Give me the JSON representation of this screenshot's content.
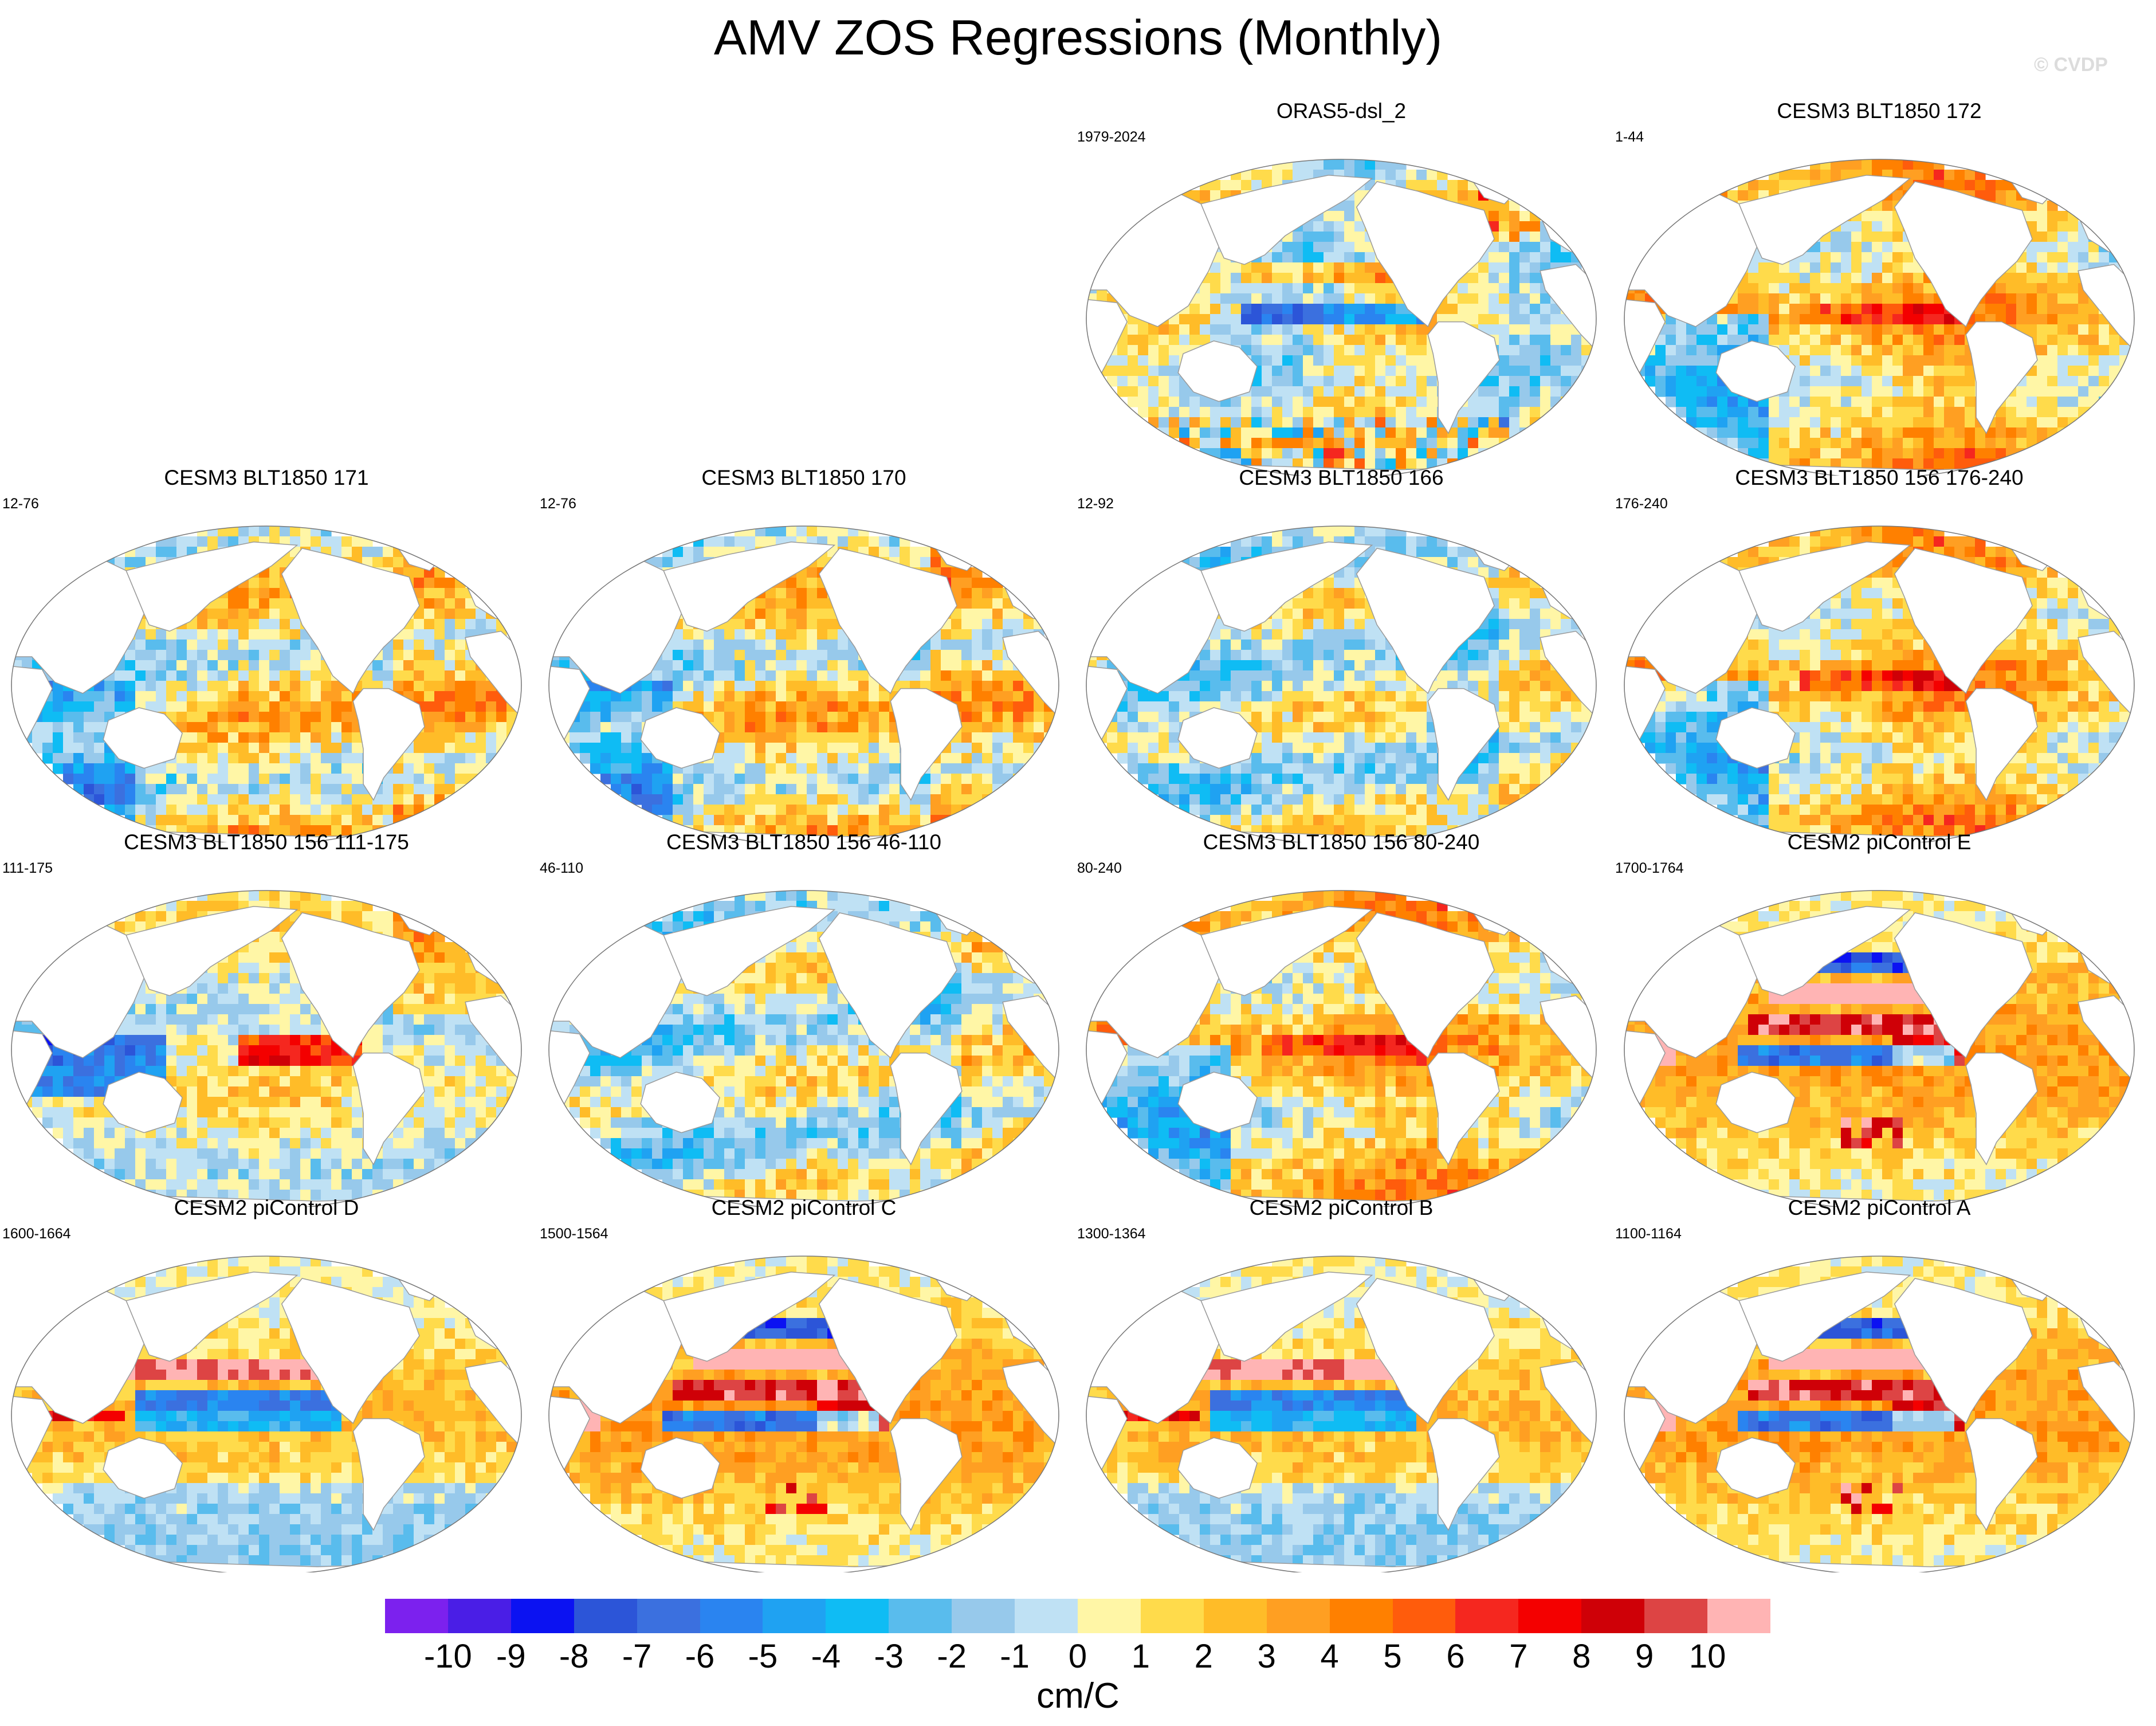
{
  "title": "AMV ZOS Regressions (Monthly)",
  "watermark": "© CVDP",
  "chart_data": {
    "type": "heatmap",
    "title": "AMV ZOS Regressions (Monthly)",
    "variable": "ZOS",
    "projection": "global map",
    "panels": [
      {
        "name": "ORAS5-dsl_2",
        "years": "1979-2024",
        "pattern": "obs"
      },
      {
        "name": "CESM3 BLT1850 172",
        "years": "1-44",
        "pattern": "cesm3_warm"
      },
      {
        "name": "CESM3 BLT1850 171",
        "years": "12-76",
        "pattern": "cesm3_mixed"
      },
      {
        "name": "CESM3 BLT1850 170",
        "years": "12-76",
        "pattern": "cesm3_mixed"
      },
      {
        "name": "CESM3 BLT1850 166",
        "years": "12-92",
        "pattern": "cesm3_cool"
      },
      {
        "name": "CESM3 BLT1850 156 176-240",
        "years": "176-240",
        "pattern": "cesm3_warm"
      },
      {
        "name": "CESM3 BLT1850 156 111-175",
        "years": "111-175",
        "pattern": "cesm3_eq"
      },
      {
        "name": "CESM3 BLT1850 156 46-110",
        "years": "46-110",
        "pattern": "cesm3_cool"
      },
      {
        "name": "CESM3 BLT1850 156 80-240",
        "years": "80-240",
        "pattern": "cesm3_warm"
      },
      {
        "name": "CESM2 piControl E",
        "years": "1700-1764",
        "pattern": "cesm2_strong"
      },
      {
        "name": "CESM2 piControl D",
        "years": "1600-1664",
        "pattern": "cesm2"
      },
      {
        "name": "CESM2 piControl C",
        "years": "1500-1564",
        "pattern": "cesm2_strong"
      },
      {
        "name": "CESM2 piControl B",
        "years": "1300-1364",
        "pattern": "cesm2"
      },
      {
        "name": "CESM2 piControl A",
        "years": "1100-1164",
        "pattern": "cesm2_strong"
      }
    ],
    "colorbar": {
      "levels": [
        -10,
        -9,
        -8,
        -7,
        -6,
        -5,
        -4,
        -3,
        -2,
        -1,
        0,
        1,
        2,
        3,
        4,
        5,
        6,
        7,
        8,
        9,
        10
      ],
      "labels": [
        "-10",
        "-9",
        "-8",
        "-7",
        "-6",
        "-5",
        "-4",
        "-3",
        "-2",
        "-1",
        "0",
        "1",
        "2",
        "3",
        "4",
        "5",
        "6",
        "7",
        "8",
        "9",
        "10"
      ],
      "colors": [
        "#7c21ee",
        "#4a1ee6",
        "#0b12f2",
        "#2c55d8",
        "#3b70df",
        "#2a84f0",
        "#1fa2f2",
        "#0fbcf4",
        "#59bced",
        "#97c9eb",
        "#bfe1f4",
        "#fff6a6",
        "#ffdb4b",
        "#ffbc28",
        "#ff9f22",
        "#ff8000",
        "#ff5c0c",
        "#f5271f",
        "#f40000",
        "#cf0007",
        "#dd4444",
        "#ffb4b4"
      ],
      "units": "cm/C"
    }
  }
}
